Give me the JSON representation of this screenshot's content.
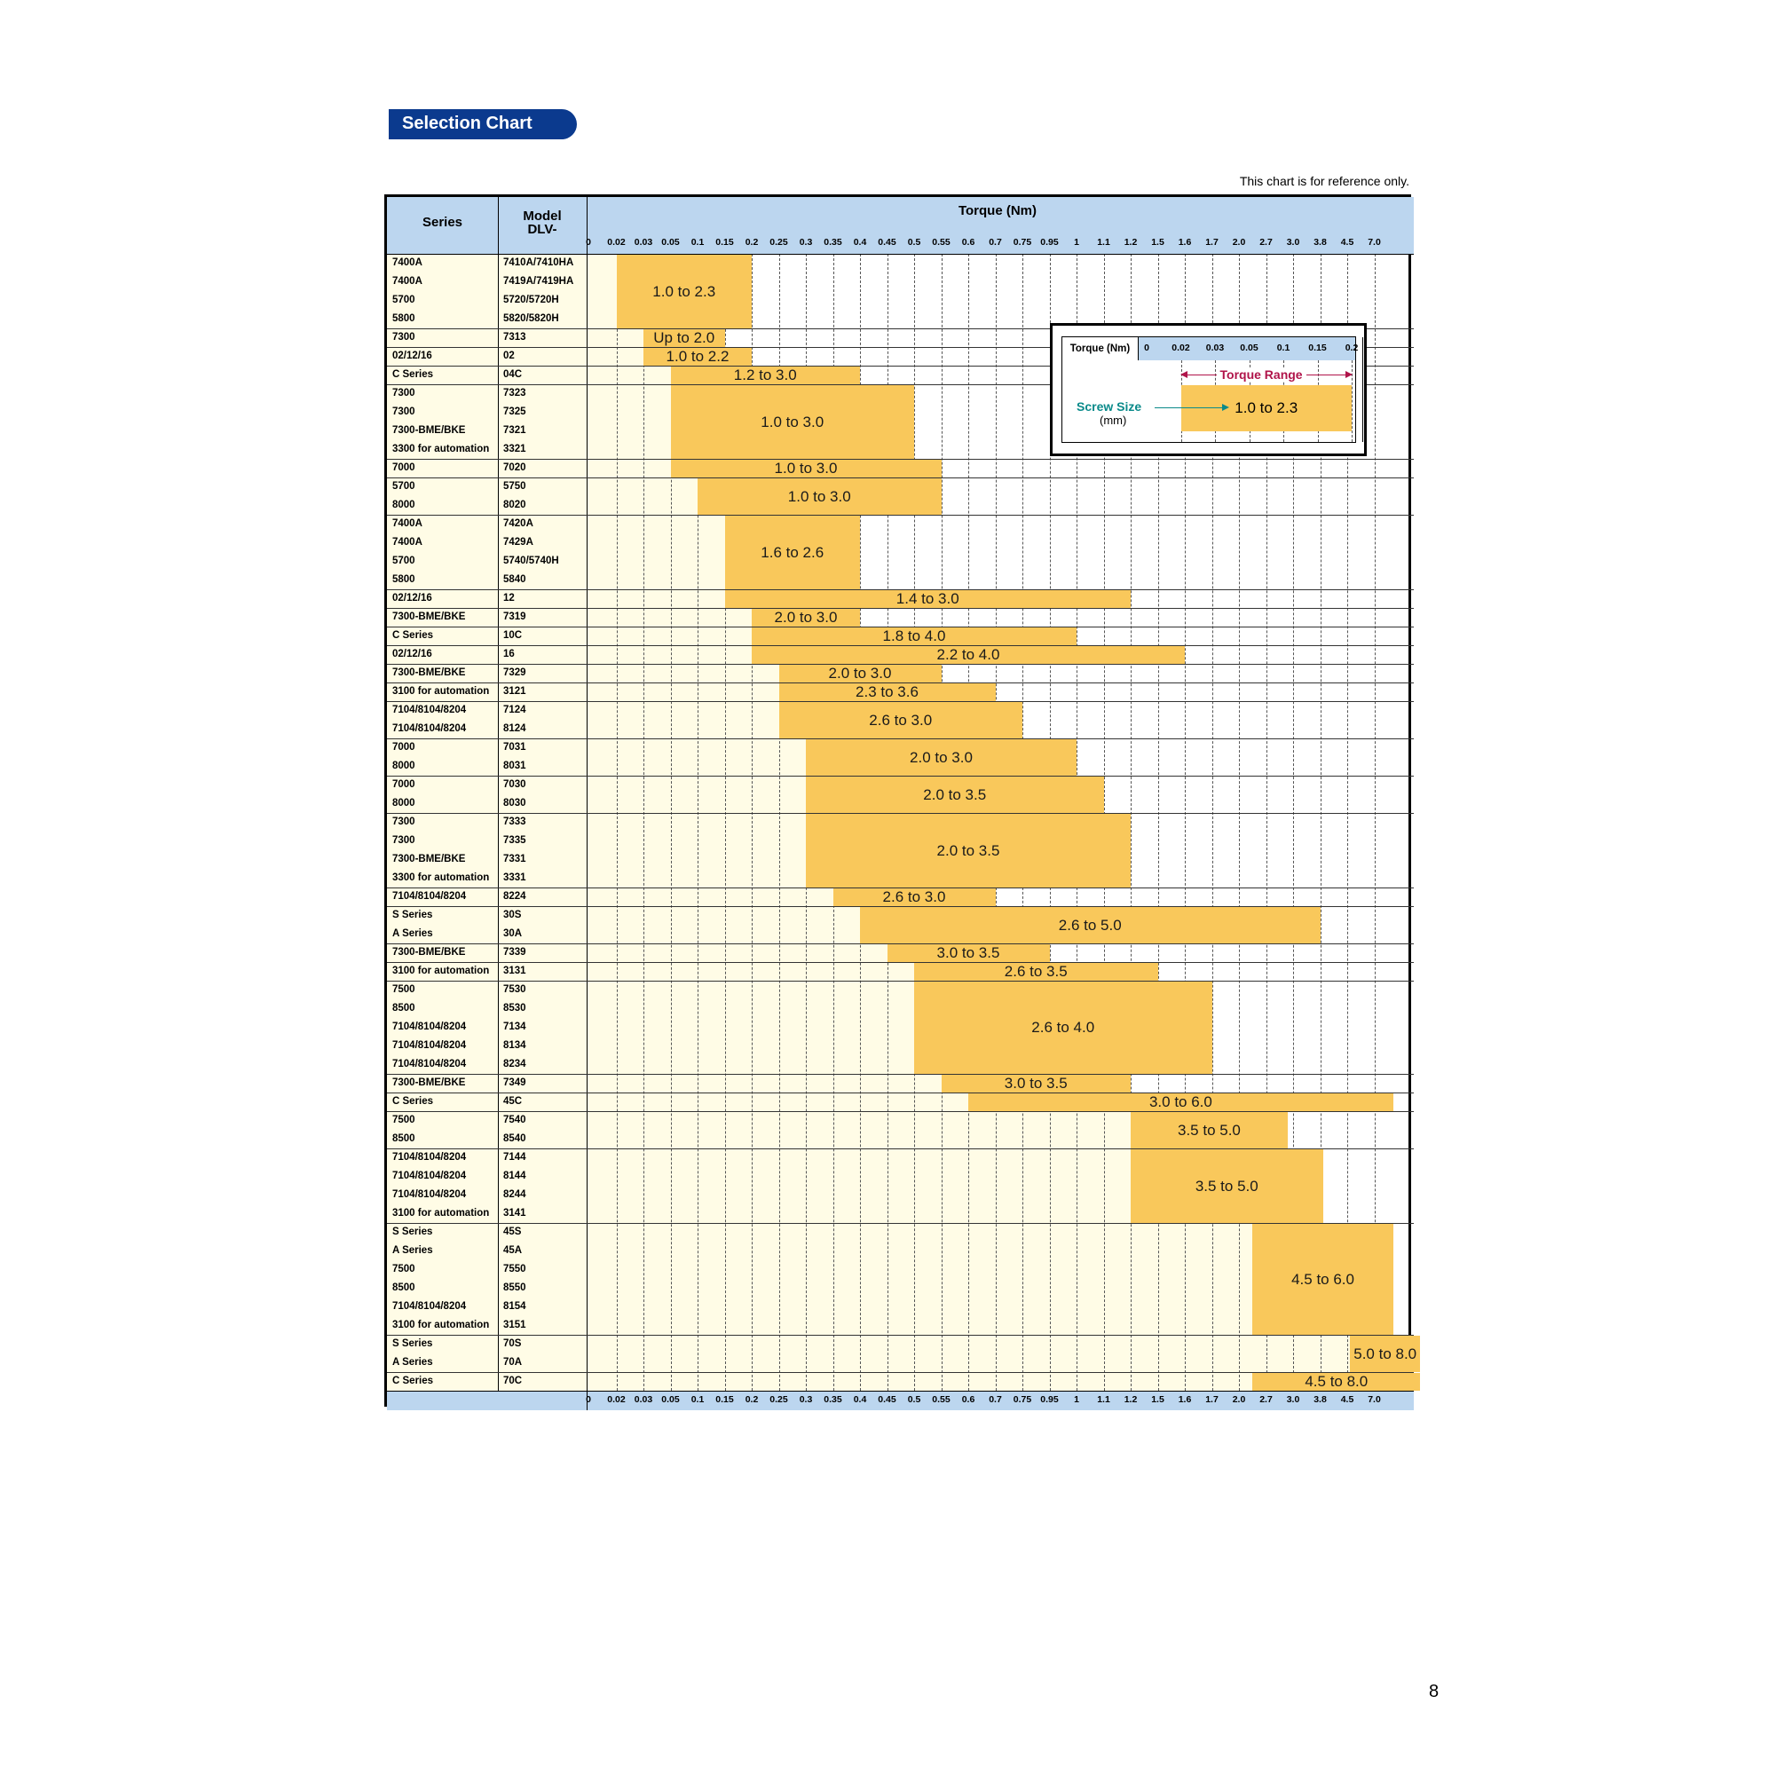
{
  "header": {
    "title": "Selection Chart",
    "note": "This chart is for reference only."
  },
  "table": {
    "col_series": "Series",
    "col_model_line1": "Model",
    "col_model_line2": "DLV-",
    "torque_title": "Torque (Nm)",
    "ticks": [
      "0",
      "0.02",
      "0.03",
      "0.05",
      "0.1",
      "0.15",
      "0.2",
      "0.25",
      "0.3",
      "0.35",
      "0.4",
      "0.45",
      "0.5",
      "0.55",
      "0.6",
      "0.7",
      "0.75",
      "0.95",
      "1",
      "1.1",
      "1.2",
      "1.5",
      "1.6",
      "1.7",
      "2.0",
      "2.7",
      "3.0",
      "3.8",
      "4.5",
      "7.0"
    ]
  },
  "groups": [
    {
      "rows": [
        [
          "7400A",
          "7410A/7410HA"
        ],
        [
          "7400A",
          "7419A/7419HA"
        ],
        [
          "5700",
          "5720/5720H"
        ],
        [
          "5800",
          "5820/5820H"
        ]
      ],
      "bar": {
        "from": 1,
        "to": 6,
        "label": "1.0 to 2.3"
      }
    },
    {
      "rows": [
        [
          "7300",
          "7313"
        ]
      ],
      "bar": {
        "from": 2,
        "to": 5,
        "label": "Up to 2.0"
      }
    },
    {
      "rows": [
        [
          "02/12/16",
          "02"
        ]
      ],
      "bar": {
        "from": 2,
        "to": 6,
        "label": "1.0 to 2.2"
      }
    },
    {
      "rows": [
        [
          "C Series",
          "04C"
        ]
      ],
      "bar": {
        "from": 3,
        "to": 10,
        "label": "1.2 to 3.0"
      }
    },
    {
      "rows": [
        [
          "7300",
          "7323"
        ],
        [
          "7300",
          "7325"
        ],
        [
          "7300-BME/BKE",
          "7321"
        ],
        [
          "3300 for automation",
          "3321"
        ]
      ],
      "bar": {
        "from": 3,
        "to": 12,
        "label": "1.0 to 3.0"
      }
    },
    {
      "rows": [
        [
          "7000",
          "7020"
        ]
      ],
      "bar": {
        "from": 3,
        "to": 13,
        "label": "1.0 to 3.0"
      }
    },
    {
      "rows": [
        [
          "5700",
          "5750"
        ],
        [
          "8000",
          "8020"
        ]
      ],
      "bar": {
        "from": 4,
        "to": 13,
        "label": "1.0 to 3.0"
      }
    },
    {
      "rows": [
        [
          "7400A",
          "7420A"
        ],
        [
          "7400A",
          "7429A"
        ],
        [
          "5700",
          "5740/5740H"
        ],
        [
          "5800",
          "5840"
        ]
      ],
      "bar": {
        "from": 5,
        "to": 10,
        "label": "1.6 to 2.6"
      }
    },
    {
      "rows": [
        [
          "02/12/16",
          "12"
        ]
      ],
      "bar": {
        "from": 5,
        "to": 20,
        "label": "1.4 to 3.0"
      }
    },
    {
      "rows": [
        [
          "7300-BME/BKE",
          "7319"
        ]
      ],
      "bar": {
        "from": 6,
        "to": 10,
        "label": "2.0 to 3.0"
      }
    },
    {
      "rows": [
        [
          "C Series",
          "10C"
        ]
      ],
      "bar": {
        "from": 6,
        "to": 18,
        "label": "1.8 to 4.0"
      }
    },
    {
      "rows": [
        [
          "02/12/16",
          "16"
        ]
      ],
      "bar": {
        "from": 6,
        "to": 22,
        "label": "2.2 to 4.0"
      }
    },
    {
      "rows": [
        [
          "7300-BME/BKE",
          "7329"
        ]
      ],
      "bar": {
        "from": 7,
        "to": 13,
        "label": "2.0 to 3.0"
      }
    },
    {
      "rows": [
        [
          "3100 for automation",
          "3121"
        ]
      ],
      "bar": {
        "from": 7,
        "to": 15,
        "label": "2.3 to 3.6"
      }
    },
    {
      "rows": [
        [
          "7104/8104/8204",
          "7124"
        ],
        [
          "7104/8104/8204",
          "8124"
        ]
      ],
      "bar": {
        "from": 7,
        "to": 16,
        "label": "2.6 to 3.0"
      }
    },
    {
      "rows": [
        [
          "7000",
          "7031"
        ],
        [
          "8000",
          "8031"
        ]
      ],
      "bar": {
        "from": 8,
        "to": 18,
        "label": "2.0 to 3.0"
      }
    },
    {
      "rows": [
        [
          "7000",
          "7030"
        ],
        [
          "8000",
          "8030"
        ]
      ],
      "bar": {
        "from": 8,
        "to": 19,
        "label": "2.0 to 3.5"
      }
    },
    {
      "rows": [
        [
          "7300",
          "7333"
        ],
        [
          "7300",
          "7335"
        ],
        [
          "7300-BME/BKE",
          "7331"
        ],
        [
          "3300 for automation",
          "3331"
        ]
      ],
      "bar": {
        "from": 8,
        "to": 20,
        "label": "2.0 to 3.5"
      }
    },
    {
      "rows": [
        [
          "7104/8104/8204",
          "8224"
        ]
      ],
      "bar": {
        "from": 9,
        "to": 15,
        "label": "2.6 to 3.0"
      }
    },
    {
      "rows": [
        [
          "S Series",
          "30S"
        ],
        [
          "A Series",
          "30A"
        ]
      ],
      "bar": {
        "from": 10,
        "to": 27,
        "label": "2.6 to 5.0"
      }
    },
    {
      "rows": [
        [
          "7300-BME/BKE",
          "7339"
        ]
      ],
      "bar": {
        "from": 11,
        "to": 17,
        "label": "3.0 to 3.5"
      }
    },
    {
      "rows": [
        [
          "3100 for automation",
          "3131"
        ]
      ],
      "bar": {
        "from": 12,
        "to": 21,
        "label": "2.6 to 3.5"
      }
    },
    {
      "rows": [
        [
          "7500",
          "7530"
        ],
        [
          "8500",
          "8530"
        ],
        [
          "7104/8104/8204",
          "7134"
        ],
        [
          "7104/8104/8204",
          "8134"
        ],
        [
          "7104/8104/8204",
          "8234"
        ]
      ],
      "bar": {
        "from": 12,
        "to": 23,
        "label": "2.6 to 4.0"
      }
    },
    {
      "rows": [
        [
          "7300-BME/BKE",
          "7349"
        ]
      ],
      "bar": {
        "from": 13,
        "to": 20,
        "label": "3.0 to 3.5"
      }
    },
    {
      "rows": [
        [
          "C Series",
          "45C"
        ]
      ],
      "bar": {
        "from": 14,
        "to": 29.7,
        "label": "3.0 to 6.0"
      }
    },
    {
      "rows": [
        [
          "7500",
          "7540"
        ],
        [
          "8500",
          "8540"
        ]
      ],
      "bar": {
        "from": 20,
        "to": 25.8,
        "label": "3.5 to 5.0"
      }
    },
    {
      "rows": [
        [
          "7104/8104/8204",
          "7144"
        ],
        [
          "7104/8104/8204",
          "8144"
        ],
        [
          "7104/8104/8204",
          "8244"
        ],
        [
          "3100 for automation",
          "3141"
        ]
      ],
      "bar": {
        "from": 20,
        "to": 27.1,
        "label": "3.5 to 5.0"
      }
    },
    {
      "rows": [
        [
          "S Series",
          "45S"
        ],
        [
          "A Series",
          "45A"
        ],
        [
          "7500",
          "7550"
        ],
        [
          "8500",
          "8550"
        ],
        [
          "7104/8104/8204",
          "8154"
        ],
        [
          "3100 for automation",
          "3151"
        ]
      ],
      "bar": {
        "from": 24.5,
        "to": 29.7,
        "label": "4.5 to 6.0"
      }
    },
    {
      "rows": [
        [
          "S Series",
          "70S"
        ],
        [
          "A Series",
          "70A"
        ]
      ],
      "bar": {
        "from": 28.1,
        "to": 30.7,
        "label": "5.0 to 8.0"
      }
    },
    {
      "rows": [
        [
          "C Series",
          "70C"
        ]
      ],
      "bar": {
        "from": 24.5,
        "to": 30.7,
        "label": "4.5 to 8.0"
      }
    }
  ],
  "legend": {
    "torque_label": "Torque (Nm)",
    "ticks": [
      "0",
      "0.02",
      "0.03",
      "0.05",
      "0.1",
      "0.15",
      "0.2"
    ],
    "range_label": "Torque Range",
    "screw_label": "Screw Size",
    "screw_unit": "(mm)",
    "bar_label": "1.0 to 2.3"
  },
  "page_number": "8",
  "colors": {
    "header_blue": "#bcd6ef",
    "pale_yellow": "#fffce6",
    "bar_yellow": "#f9c85b",
    "pill_blue": "#0b3a8e",
    "range_red": "#b0144a",
    "screw_teal": "#0a8a8a"
  }
}
